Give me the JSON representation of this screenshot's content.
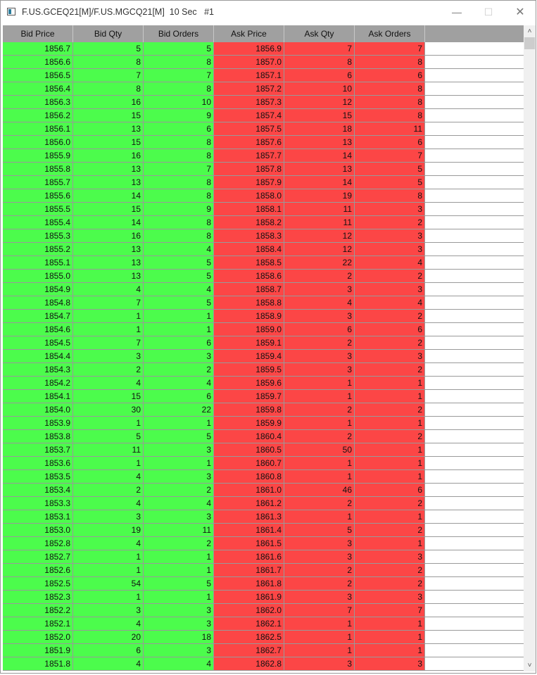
{
  "window": {
    "title": "F.US.GCEQ21[M]/F.US.MGCQ21[M]  10 Sec   #1",
    "minimize": "—",
    "maximize": "☐",
    "close": "✕"
  },
  "colors": {
    "bid": "#4cfc4c",
    "ask": "#fc4646",
    "header": "#a0a0a0"
  },
  "table": {
    "columns": [
      "Bid Price",
      "Bid Qty",
      "Bid Orders",
      "Ask Price",
      "Ask Qty",
      "Ask Orders"
    ],
    "rows": [
      [
        "1856.7",
        "5",
        "5",
        "1856.9",
        "7",
        "7"
      ],
      [
        "1856.6",
        "8",
        "8",
        "1857.0",
        "8",
        "8"
      ],
      [
        "1856.5",
        "7",
        "7",
        "1857.1",
        "6",
        "6"
      ],
      [
        "1856.4",
        "8",
        "8",
        "1857.2",
        "10",
        "8"
      ],
      [
        "1856.3",
        "16",
        "10",
        "1857.3",
        "12",
        "8"
      ],
      [
        "1856.2",
        "15",
        "9",
        "1857.4",
        "15",
        "8"
      ],
      [
        "1856.1",
        "13",
        "6",
        "1857.5",
        "18",
        "11"
      ],
      [
        "1856.0",
        "15",
        "8",
        "1857.6",
        "13",
        "6"
      ],
      [
        "1855.9",
        "16",
        "8",
        "1857.7",
        "14",
        "7"
      ],
      [
        "1855.8",
        "13",
        "7",
        "1857.8",
        "13",
        "5"
      ],
      [
        "1855.7",
        "13",
        "8",
        "1857.9",
        "14",
        "5"
      ],
      [
        "1855.6",
        "14",
        "8",
        "1858.0",
        "19",
        "8"
      ],
      [
        "1855.5",
        "15",
        "9",
        "1858.1",
        "11",
        "3"
      ],
      [
        "1855.4",
        "14",
        "8",
        "1858.2",
        "11",
        "2"
      ],
      [
        "1855.3",
        "16",
        "8",
        "1858.3",
        "12",
        "3"
      ],
      [
        "1855.2",
        "13",
        "4",
        "1858.4",
        "12",
        "3"
      ],
      [
        "1855.1",
        "13",
        "5",
        "1858.5",
        "22",
        "4"
      ],
      [
        "1855.0",
        "13",
        "5",
        "1858.6",
        "2",
        "2"
      ],
      [
        "1854.9",
        "4",
        "4",
        "1858.7",
        "3",
        "3"
      ],
      [
        "1854.8",
        "7",
        "5",
        "1858.8",
        "4",
        "4"
      ],
      [
        "1854.7",
        "1",
        "1",
        "1858.9",
        "3",
        "2"
      ],
      [
        "1854.6",
        "1",
        "1",
        "1859.0",
        "6",
        "6"
      ],
      [
        "1854.5",
        "7",
        "6",
        "1859.1",
        "2",
        "2"
      ],
      [
        "1854.4",
        "3",
        "3",
        "1859.4",
        "3",
        "3"
      ],
      [
        "1854.3",
        "2",
        "2",
        "1859.5",
        "3",
        "2"
      ],
      [
        "1854.2",
        "4",
        "4",
        "1859.6",
        "1",
        "1"
      ],
      [
        "1854.1",
        "15",
        "6",
        "1859.7",
        "1",
        "1"
      ],
      [
        "1854.0",
        "30",
        "22",
        "1859.8",
        "2",
        "2"
      ],
      [
        "1853.9",
        "1",
        "1",
        "1859.9",
        "1",
        "1"
      ],
      [
        "1853.8",
        "5",
        "5",
        "1860.4",
        "2",
        "2"
      ],
      [
        "1853.7",
        "11",
        "3",
        "1860.5",
        "50",
        "1"
      ],
      [
        "1853.6",
        "1",
        "1",
        "1860.7",
        "1",
        "1"
      ],
      [
        "1853.5",
        "4",
        "3",
        "1860.8",
        "1",
        "1"
      ],
      [
        "1853.4",
        "2",
        "2",
        "1861.0",
        "46",
        "6"
      ],
      [
        "1853.3",
        "4",
        "4",
        "1861.2",
        "2",
        "2"
      ],
      [
        "1853.1",
        "3",
        "3",
        "1861.3",
        "1",
        "1"
      ],
      [
        "1853.0",
        "19",
        "11",
        "1861.4",
        "5",
        "2"
      ],
      [
        "1852.8",
        "4",
        "2",
        "1861.5",
        "3",
        "1"
      ],
      [
        "1852.7",
        "1",
        "1",
        "1861.6",
        "3",
        "3"
      ],
      [
        "1852.6",
        "1",
        "1",
        "1861.7",
        "2",
        "2"
      ],
      [
        "1852.5",
        "54",
        "5",
        "1861.8",
        "2",
        "2"
      ],
      [
        "1852.3",
        "1",
        "1",
        "1861.9",
        "3",
        "3"
      ],
      [
        "1852.2",
        "3",
        "3",
        "1862.0",
        "7",
        "7"
      ],
      [
        "1852.1",
        "4",
        "3",
        "1862.1",
        "1",
        "1"
      ],
      [
        "1852.0",
        "20",
        "18",
        "1862.5",
        "1",
        "1"
      ],
      [
        "1851.9",
        "6",
        "3",
        "1862.7",
        "1",
        "1"
      ],
      [
        "1851.8",
        "4",
        "4",
        "1862.8",
        "3",
        "3"
      ]
    ]
  },
  "scrollbar": {
    "up_icon": "chevron-up-icon",
    "down_icon": "chevron-down-icon",
    "up": "˄",
    "down": "˅"
  }
}
